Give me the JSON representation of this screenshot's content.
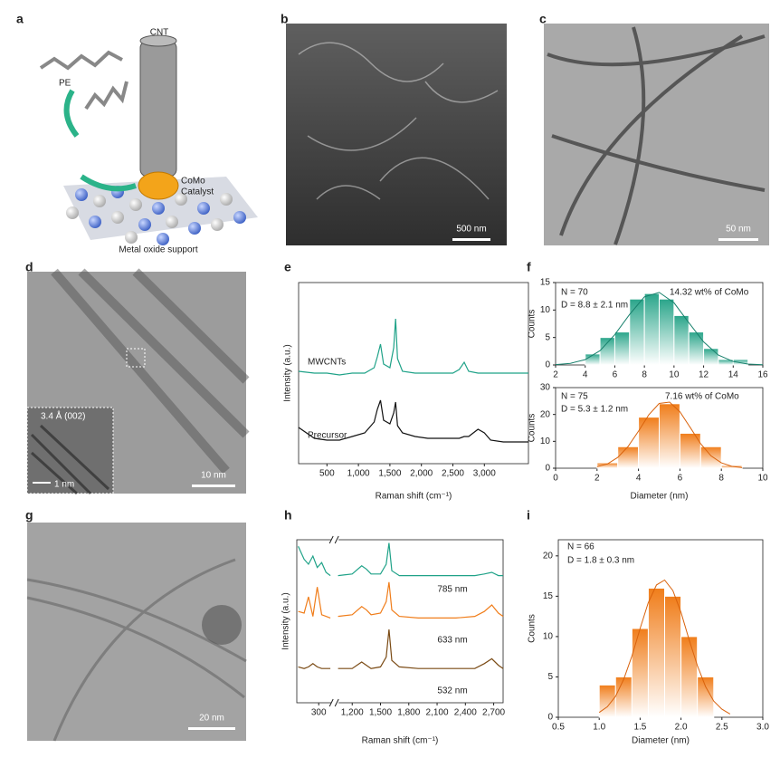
{
  "schematic": {
    "panel_label": "a",
    "labels": [
      "CNT",
      "PE",
      "CoMo",
      "Catalyst",
      "Metal oxide support"
    ]
  },
  "images": [
    {
      "panel_label": "b",
      "scale_bar": "500 nm"
    },
    {
      "panel_label": "c",
      "scale_bar": "50 nm"
    },
    {
      "panel_label": "d",
      "scale_bar": "10 nm",
      "inset_label": "3.4 Å (002)",
      "inset_scale_bar": "1 nm"
    },
    {
      "panel_label": "g",
      "scale_bar": "20 nm"
    }
  ],
  "chart_data": [
    {
      "type": "line",
      "panel_label": "e",
      "xlabel": "Raman shift (cm⁻¹)",
      "ylabel": "Intensity (a.u.)",
      "xlim": [
        50,
        3700
      ],
      "ylim": [
        0,
        10
      ],
      "xticks": [
        500,
        {
          "value": 1000,
          "label": "1,000"
        },
        {
          "value": 1500,
          "label": "1,500"
        },
        {
          "value": 2000,
          "label": "2,000"
        },
        {
          "value": 2500,
          "label": "2,500"
        },
        {
          "value": 3000,
          "label": "3,000"
        }
      ],
      "x": [
        50,
        300,
        500,
        700,
        900,
        1100,
        1250,
        1300,
        1350,
        1400,
        1500,
        1560,
        1590,
        1620,
        1700,
        1900,
        2100,
        2300,
        2500,
        2600,
        2680,
        2750,
        2900,
        3000,
        3100,
        3300,
        3500,
        3700
      ],
      "series": [
        {
          "name": "MWCNTs",
          "color": "#1fa288",
          "values": [
            5.1,
            5.0,
            5.0,
            4.9,
            5.0,
            5.0,
            5.3,
            5.9,
            6.6,
            5.5,
            5.3,
            6.4,
            8.0,
            5.8,
            5.1,
            5.0,
            5.0,
            5.0,
            5.0,
            5.2,
            5.6,
            5.1,
            5.0,
            5.0,
            5.0,
            5.0,
            5.0,
            5.0
          ]
        },
        {
          "name": "Precursor",
          "color": "#111111",
          "values": [
            2.0,
            1.4,
            1.3,
            1.3,
            1.5,
            1.7,
            2.3,
            3.0,
            3.5,
            2.4,
            2.2,
            2.8,
            3.4,
            2.1,
            1.7,
            1.5,
            1.4,
            1.4,
            1.4,
            1.4,
            1.5,
            1.5,
            1.9,
            1.7,
            1.3,
            1.2,
            1.2,
            1.2
          ]
        }
      ]
    },
    {
      "type": "histogram",
      "panel_label": "f",
      "ylabel": "Counts",
      "color": "#2aa58a",
      "annotations": [
        "N = 70",
        "D = 8.8 ± 2.1 nm",
        "14.32 wt% of CoMo"
      ],
      "bins": [
        4,
        5,
        6,
        7,
        8,
        9,
        10,
        11,
        12,
        13,
        14,
        15
      ],
      "values": [
        2,
        5,
        6,
        12,
        13,
        12,
        9,
        6,
        3,
        1,
        1
      ],
      "fit": {
        "color": "#17806c",
        "x": [
          2,
          3,
          4,
          5,
          6,
          7,
          8,
          9,
          10,
          11,
          12,
          13,
          14,
          15,
          16
        ],
        "values": [
          0.07,
          0.29,
          0.98,
          2.6,
          5.5,
          9.2,
          12.4,
          13.2,
          11.3,
          7.7,
          4.2,
          1.8,
          0.62,
          0.17,
          0.04
        ]
      },
      "xlim": [
        2,
        16
      ],
      "xticks": [
        2,
        4,
        6,
        8,
        10,
        12,
        14,
        16
      ],
      "ylim": [
        0,
        15
      ],
      "yticks": [
        0,
        5,
        10,
        15
      ]
    },
    {
      "type": "histogram",
      "xlabel": "Diameter (nm)",
      "ylabel": "Counts",
      "color": "#f07d1a",
      "annotations": [
        "N = 75",
        "D = 5.3 ± 1.2 nm",
        "7.16 wt% of CoMo"
      ],
      "bins": [
        2,
        3,
        4,
        5,
        6,
        7,
        8,
        9
      ],
      "values": [
        2,
        8,
        19,
        24,
        13,
        8,
        1
      ],
      "fit": {
        "color": "#d9620c",
        "x": [
          2,
          2.5,
          3,
          3.5,
          4,
          4.5,
          5,
          5.5,
          6,
          6.5,
          7,
          7.5,
          8,
          8.5,
          9
        ],
        "values": [
          0.57,
          1.6,
          4.0,
          8.1,
          13.8,
          19.9,
          24.1,
          24.6,
          21.0,
          15.1,
          9.1,
          4.6,
          2.0,
          0.7,
          0.2
        ]
      },
      "xlim": [
        0,
        10
      ],
      "xticks": [
        0,
        2,
        4,
        6,
        8,
        10
      ],
      "ylim": [
        0,
        30
      ],
      "yticks": [
        0,
        10,
        20,
        30
      ]
    },
    {
      "type": "line",
      "panel_label": "h",
      "xlabel": "Raman shift (cm⁻¹)",
      "ylabel": "Intensity (a.u.)",
      "xlim": [
        150,
        2800
      ],
      "xbreak": [
        390,
        1050
      ],
      "ylim": [
        0,
        10
      ],
      "xticks": [
        300,
        {
          "value": 1200,
          "label": "1,200"
        },
        {
          "value": 1500,
          "label": "1,500"
        },
        {
          "value": 1800,
          "label": "1,800"
        },
        {
          "value": 2100,
          "label": "2,100"
        },
        {
          "value": 2400,
          "label": "2,400"
        },
        {
          "value": 2700,
          "label": "2,700"
        }
      ],
      "x": [
        160,
        200,
        230,
        260,
        290,
        320,
        350,
        380,
        700,
        1050,
        1200,
        1300,
        1350,
        1400,
        1500,
        1560,
        1590,
        1620,
        1700,
        1900,
        2100,
        2300,
        2500,
        2600,
        2680,
        2750,
        2800
      ],
      "series": [
        {
          "name": "785 nm",
          "color": "#1fa288",
          "values": [
            9.6,
            8.8,
            8.5,
            9.0,
            8.3,
            8.6,
            8.0,
            7.8,
            null,
            7.8,
            7.9,
            8.4,
            8.2,
            7.9,
            7.9,
            8.5,
            9.8,
            8.1,
            7.8,
            7.8,
            7.8,
            7.8,
            7.8,
            7.9,
            8.0,
            7.8,
            7.8
          ]
        },
        {
          "name": "633 nm",
          "color": "#f07d1a",
          "values": [
            5.6,
            5.5,
            6.5,
            5.3,
            7.1,
            5.4,
            5.3,
            5.2,
            null,
            5.3,
            5.4,
            5.9,
            5.7,
            5.4,
            5.5,
            6.2,
            7.4,
            5.7,
            5.3,
            5.2,
            5.2,
            5.2,
            5.3,
            5.6,
            6.0,
            5.5,
            5.3
          ]
        },
        {
          "name": "532 nm",
          "color": "#7a4a14",
          "values": [
            2.2,
            2.1,
            2.2,
            2.4,
            2.2,
            2.1,
            2.1,
            2.1,
            null,
            2.1,
            2.1,
            2.5,
            2.3,
            2.1,
            2.2,
            2.8,
            4.5,
            2.6,
            2.2,
            2.1,
            2.1,
            2.1,
            2.1,
            2.4,
            2.7,
            2.3,
            2.1
          ]
        }
      ]
    },
    {
      "type": "histogram",
      "panel_label": "i",
      "xlabel": "Diameter (nm)",
      "ylabel": "Counts",
      "color": "#f07d1a",
      "annotations": [
        "N = 66",
        "D = 1.8 ± 0.3 nm"
      ],
      "bins": [
        1.0,
        1.2,
        1.4,
        1.6,
        1.8,
        2.0,
        2.2,
        2.4
      ],
      "values": [
        4,
        5,
        11,
        16,
        15,
        10,
        5
      ],
      "fit": {
        "color": "#d9620c",
        "x": [
          1.0,
          1.1,
          1.2,
          1.3,
          1.4,
          1.5,
          1.6,
          1.7,
          1.8,
          1.9,
          2.0,
          2.1,
          2.2,
          2.3,
          2.4,
          2.5,
          2.6
        ],
        "values": [
          0.6,
          1.3,
          2.6,
          4.7,
          7.6,
          11.0,
          14.2,
          16.4,
          17.0,
          15.7,
          13.0,
          9.6,
          6.4,
          3.8,
          2.0,
          1.0,
          0.4
        ]
      },
      "xlim": [
        0.5,
        3.0
      ],
      "xticks": [
        0.5,
        {
          "value": 1,
          "label": "1.0"
        },
        1.5,
        {
          "value": 2,
          "label": "2.0"
        },
        2.5,
        {
          "value": 3,
          "label": "3.0"
        }
      ],
      "ylim": [
        0,
        22
      ],
      "yticks": [
        0,
        5,
        10,
        15,
        20
      ]
    }
  ]
}
